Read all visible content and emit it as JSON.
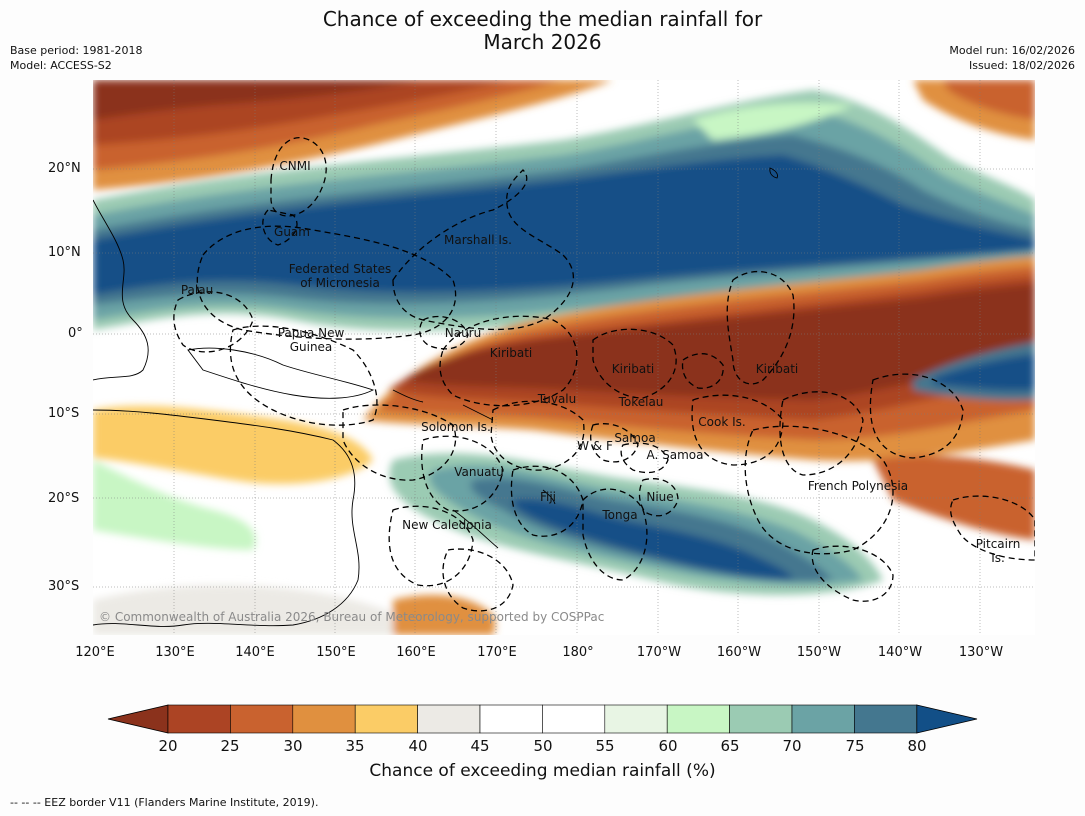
{
  "title": {
    "line1": "Chance of exceeding the median rainfall for",
    "line2": "March 2026"
  },
  "meta": {
    "base_period": "Base period: 1981-2018",
    "model": "Model: ACCESS-S2",
    "model_run": "Model run: 16/02/2026",
    "issued": "Issued: 18/02/2026"
  },
  "axes": {
    "lat_ticks": [
      "20°N",
      "10°N",
      "0°",
      "10°S",
      "20°S",
      "30°S"
    ],
    "lon_ticks": [
      "120°E",
      "130°E",
      "140°E",
      "150°E",
      "160°E",
      "170°E",
      "180°",
      "170°W",
      "160°W",
      "150°W",
      "140°W",
      "130°W"
    ]
  },
  "regions": [
    {
      "name": "CNMI",
      "lines": [
        "CNMI"
      ]
    },
    {
      "name": "Guam",
      "lines": [
        "Guam"
      ]
    },
    {
      "name": "Marshall Is.",
      "lines": [
        "Marshall Is."
      ]
    },
    {
      "name": "Federated States of Micronesia",
      "lines": [
        "Federated States",
        "of Micronesia"
      ]
    },
    {
      "name": "Palau",
      "lines": [
        "Palau"
      ]
    },
    {
      "name": "Papua New Guinea",
      "lines": [
        "Papua New",
        "Guinea"
      ]
    },
    {
      "name": "Nauru",
      "lines": [
        "Nauru"
      ]
    },
    {
      "name": "Kiribati (Gilbert)",
      "lines": [
        "Kiribati"
      ]
    },
    {
      "name": "Kiribati (Phoenix)",
      "lines": [
        "Kiribati"
      ]
    },
    {
      "name": "Kiribati (Line)",
      "lines": [
        "Kiribati"
      ]
    },
    {
      "name": "Tuvalu",
      "lines": [
        "Tuvalu"
      ]
    },
    {
      "name": "Tokelau",
      "lines": [
        "Tokelau"
      ]
    },
    {
      "name": "Cook Is.",
      "lines": [
        "Cook Is."
      ]
    },
    {
      "name": "Solomon Is.",
      "lines": [
        "Solomon Is."
      ]
    },
    {
      "name": "Samoa",
      "lines": [
        "Samoa"
      ]
    },
    {
      "name": "W & F",
      "lines": [
        "W & F"
      ]
    },
    {
      "name": "A. Samoa",
      "lines": [
        "A. Samoa"
      ]
    },
    {
      "name": "Vanuatu",
      "lines": [
        "Vanuatu"
      ]
    },
    {
      "name": "Fiji",
      "lines": [
        "Fiji"
      ]
    },
    {
      "name": "Niue",
      "lines": [
        "Niue"
      ]
    },
    {
      "name": "Tonga",
      "lines": [
        "Tonga"
      ]
    },
    {
      "name": "French Polynesia",
      "lines": [
        "French Polynesia"
      ]
    },
    {
      "name": "New Caledonia",
      "lines": [
        "New Caledonia"
      ]
    },
    {
      "name": "Pitcairn Is.",
      "lines": [
        "Pitcairn",
        "Is."
      ]
    }
  ],
  "copyright": "© Commonwealth of Australia 2026, Bureau of Meteorology, supported by COSPPac",
  "colorbar": {
    "title": "Chance of exceeding median rainfall (%)",
    "ticks": [
      "20",
      "25",
      "30",
      "35",
      "40",
      "45",
      "50",
      "55",
      "60",
      "65",
      "70",
      "75",
      "80"
    ],
    "colors": {
      "below20": "#8b321c",
      "20-25": "#ac4424",
      "25-30": "#c9622f",
      "30-35": "#e0903f",
      "35-40": "#fbcc66",
      "40-45": "#eceae5",
      "45-50": "#ffffff",
      "50-55": "#ffffff",
      "55-60": "#e8f5e4",
      "60-65": "#c8f6c4",
      "65-70": "#9bcbb3",
      "70-75": "#6ba3a5",
      "75-80": "#44778f",
      "above80": "#124f87"
    }
  },
  "footer": "--  --  -- EEZ border V11 (Flanders Marine Institute, 2019)."
}
